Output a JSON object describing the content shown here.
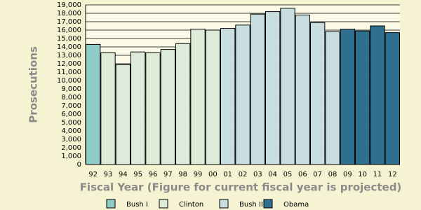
{
  "chart_data": {
    "type": "bar",
    "y_label": "Prosecutions",
    "x_label": "Fiscal Year (Figure for current fiscal year is projected)",
    "categories": [
      "92",
      "93",
      "94",
      "95",
      "96",
      "97",
      "98",
      "99",
      "00",
      "01",
      "02",
      "03",
      "04",
      "05",
      "06",
      "07",
      "08",
      "09",
      "10",
      "11",
      "12"
    ],
    "series": [
      {
        "name": "Bush I",
        "color": "#8fcbc7",
        "values": [
          14300,
          null,
          null,
          null,
          null,
          null,
          null,
          null,
          null,
          null,
          null,
          null,
          null,
          null,
          null,
          null,
          null,
          null,
          null,
          null,
          null
        ]
      },
      {
        "name": "Clinton",
        "color": "#dcecd8",
        "values": [
          null,
          13300,
          11900,
          13400,
          13300,
          13700,
          14400,
          16100,
          16000,
          null,
          null,
          null,
          null,
          null,
          null,
          null,
          null,
          null,
          null,
          null,
          null
        ]
      },
      {
        "name": "Bush II",
        "color": "#c9dee1",
        "values": [
          null,
          null,
          null,
          null,
          null,
          null,
          null,
          null,
          null,
          16200,
          16600,
          17900,
          18200,
          18600,
          17800,
          16900,
          15800,
          null,
          null,
          null,
          null
        ]
      },
      {
        "name": "Obama",
        "color": "#2f7090",
        "values": [
          null,
          null,
          null,
          null,
          null,
          null,
          null,
          null,
          null,
          null,
          null,
          null,
          null,
          null,
          null,
          null,
          null,
          16100,
          15900,
          16500,
          15700
        ]
      }
    ],
    "ylim": [
      0,
      19000
    ],
    "yticks": [
      0,
      {
        "value": 1000,
        "label": "1,000"
      },
      {
        "value": 2000,
        "label": "2,000"
      },
      {
        "value": 3000,
        "label": "3,000"
      },
      {
        "value": 4000,
        "label": "4,000"
      },
      {
        "value": 5000,
        "label": "5,000"
      },
      {
        "value": 6000,
        "label": "6,000"
      },
      {
        "value": 7000,
        "label": "7,000"
      },
      {
        "value": 8000,
        "label": "8,000"
      },
      {
        "value": 9000,
        "label": "9,000"
      },
      {
        "value": 10000,
        "label": "10,000"
      },
      {
        "value": 11000,
        "label": "11,000"
      },
      {
        "value": 12000,
        "label": "12,000"
      },
      {
        "value": 13000,
        "label": "13,000"
      },
      {
        "value": 14000,
        "label": "14,000"
      },
      {
        "value": 15000,
        "label": "15,000"
      },
      {
        "value": 16000,
        "label": "16,000"
      },
      {
        "value": 17000,
        "label": "17,000"
      },
      {
        "value": 18000,
        "label": "18,000"
      },
      {
        "value": 19000,
        "label": "19,000"
      }
    ],
    "grid": true
  }
}
